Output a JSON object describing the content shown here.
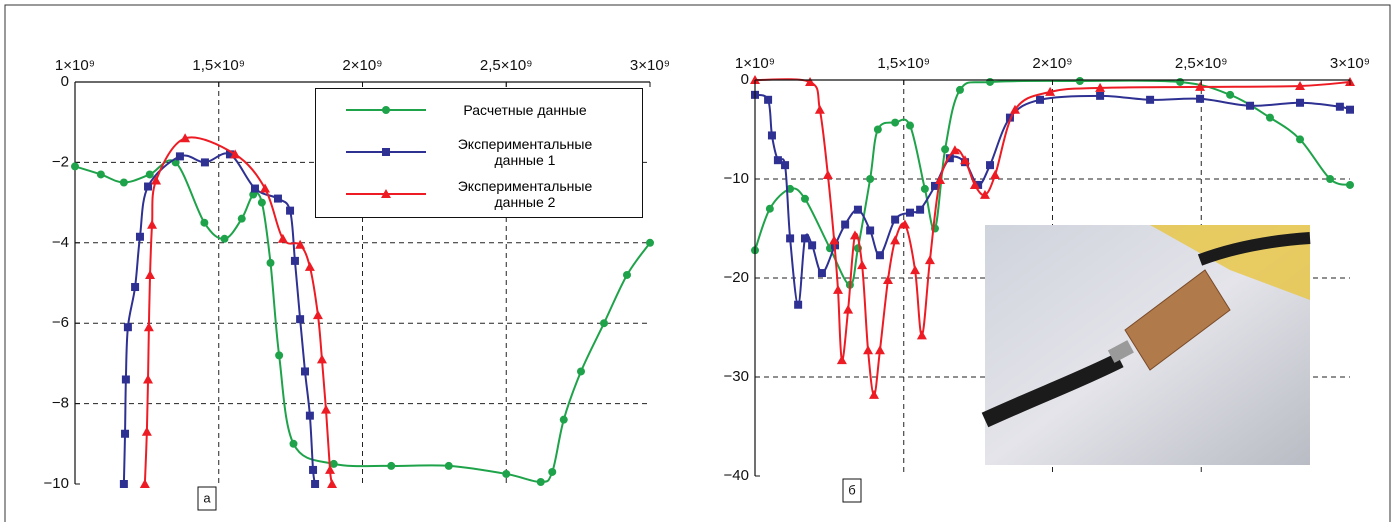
{
  "chart_data": [
    {
      "type": "line",
      "panel_label": "а",
      "xlim": [
        1000000000.0,
        3000000000.0
      ],
      "xticks": [
        {
          "value": 1000000000.0,
          "label": "1×10⁹"
        },
        {
          "value": 1500000000.0,
          "label": "1,5×10⁹"
        },
        {
          "value": 2000000000.0,
          "label": "2×10⁹"
        },
        {
          "value": 2500000000.0,
          "label": "2,5×10⁹"
        },
        {
          "value": 3000000000.0,
          "label": "3×10⁹"
        }
      ],
      "ylim": [
        -10,
        0
      ],
      "yticks": [
        0,
        {
          "value": -2,
          "label": "−2"
        },
        {
          "value": -4,
          "label": "−4"
        },
        {
          "value": -6,
          "label": "−6"
        },
        {
          "value": -8,
          "label": "−8"
        },
        {
          "value": -10,
          "label": "−10"
        }
      ],
      "grid": true,
      "legend": "upper right",
      "series": [
        {
          "name": "Расчетные данные",
          "color": "#1fa34a",
          "marker": "circle",
          "x": [
            1000000000.0,
            1090000000.0,
            1170000000.0,
            1260000000.0,
            1350000000.0,
            1450000000.0,
            1520000000.0,
            1580000000.0,
            1620000000.0,
            1650000000.0,
            1680000000.0,
            1710000000.0,
            1760000000.0,
            1900000000.0,
            2100000000.0,
            2300000000.0,
            2500000000.0,
            2620000000.0,
            2660000000.0,
            2700000000.0,
            2760000000.0,
            2840000000.0,
            2920000000.0,
            3000000000.0
          ],
          "values": [
            -2.1,
            -2.3,
            -2.5,
            -2.3,
            -2.0,
            -3.5,
            -3.9,
            -3.4,
            -2.8,
            -3.0,
            -4.5,
            -6.8,
            -9.0,
            -9.5,
            -9.55,
            -9.55,
            -9.75,
            -9.95,
            -9.7,
            -8.4,
            -7.2,
            -6.0,
            -4.8,
            -4.0
          ]
        },
        {
          "name": "Экспериментальные данные 1",
          "color": "#2e3192",
          "marker": "square",
          "x": [
            1170000000.0,
            1174000000.0,
            1177000000.0,
            1184000000.0,
            1209000000.0,
            1226000000.0,
            1254000000.0,
            1365000000.0,
            1452000000.0,
            1539000000.0,
            1626000000.0,
            1706000000.0,
            1748000000.0,
            1765000000.0,
            1783000000.0,
            1800000000.0,
            1817000000.0,
            1828000000.0,
            1835000000.0
          ],
          "values": [
            -10,
            -8.75,
            -7.4,
            -6.1,
            -5.1,
            -3.85,
            -2.6,
            -1.85,
            -2.0,
            -1.8,
            -2.65,
            -2.9,
            -3.2,
            -4.45,
            -5.9,
            -7.2,
            -8.3,
            -9.65,
            -10
          ]
        },
        {
          "name": "Экспериментальные данные 2",
          "color": "#ed1c24",
          "marker": "triangle",
          "x": [
            1243000000.0,
            1250000000.0,
            1254000000.0,
            1257000000.0,
            1261000000.0,
            1268000000.0,
            1282000000.0,
            1383000000.0,
            1557000000.0,
            1661000000.0,
            1723000000.0,
            1783000000.0,
            1817000000.0,
            1845000000.0,
            1859000000.0,
            1873000000.0,
            1887000000.0,
            1894000000.0
          ],
          "values": [
            -10,
            -8.7,
            -7.4,
            -6.1,
            -4.8,
            -3.55,
            -2.45,
            -1.4,
            -1.8,
            -2.65,
            -3.9,
            -4.05,
            -4.6,
            -5.8,
            -6.9,
            -8.15,
            -9.65,
            -10
          ]
        }
      ]
    },
    {
      "type": "line",
      "panel_label": "б",
      "xlim": [
        1000000000.0,
        3000000000.0
      ],
      "xticks": [
        {
          "value": 1000000000.0,
          "label": "1×10⁹"
        },
        {
          "value": 1500000000.0,
          "label": "1,5×10⁹"
        },
        {
          "value": 2000000000.0,
          "label": "2×10⁹"
        },
        {
          "value": 2500000000.0,
          "label": "2,5×10⁹"
        },
        {
          "value": 3000000000.0,
          "label": "3×10⁹"
        }
      ],
      "ylim": [
        -40,
        0
      ],
      "yticks": [
        0,
        {
          "value": -10,
          "label": "−10"
        },
        {
          "value": -20,
          "label": "−20"
        },
        {
          "value": -30,
          "label": "−30"
        },
        {
          "value": -40,
          "label": "−40"
        }
      ],
      "grid": true,
      "series": [
        {
          "color": "#1fa34a",
          "marker": "circle",
          "x": [
            1000000000.0,
            1050000000.0,
            1118000000.0,
            1168000000.0,
            1252000000.0,
            1319000000.0,
            1346000000.0,
            1387000000.0,
            1413000000.0,
            1471000000.0,
            1521000000.0,
            1571000000.0,
            1605000000.0,
            1639000000.0,
            1689000000.0,
            1790000000.0,
            2092000000.0,
            2429000000.0,
            2597000000.0,
            2731000000.0,
            2832000000.0,
            2933000000.0,
            3000000000.0
          ],
          "values": [
            -17.2,
            -13,
            -11,
            -12,
            -17,
            -20.7,
            -17,
            -10,
            -5,
            -4.3,
            -4.6,
            -11,
            -15,
            -7,
            -1,
            -0.2,
            -0.1,
            -0.2,
            -1.5,
            -3.8,
            -6,
            -10,
            -10.6
          ]
        },
        {
          "color": "#2e3192",
          "marker": "square",
          "x": [
            1000000000.0,
            1044000000.0,
            1057000000.0,
            1077000000.0,
            1101000000.0,
            1118000000.0,
            1145000000.0,
            1168000000.0,
            1192000000.0,
            1225000000.0,
            1269000000.0,
            1303000000.0,
            1346000000.0,
            1387000000.0,
            1420000000.0,
            1471000000.0,
            1521000000.0,
            1555000000.0,
            1605000000.0,
            1655000000.0,
            1706000000.0,
            1750000000.0,
            1790000000.0,
            1857000000.0,
            1958000000.0,
            2160000000.0,
            2328000000.0,
            2496000000.0,
            2664000000.0,
            2832000000.0,
            2966000000.0,
            3000000000.0
          ],
          "values": [
            -1.5,
            -2,
            -5.6,
            -8.1,
            -8.6,
            -16,
            -22.7,
            -16,
            -16.7,
            -19.5,
            -16.7,
            -14.6,
            -13.1,
            -15.2,
            -17.7,
            -14.1,
            -13.4,
            -13.1,
            -10.7,
            -7.9,
            -8.3,
            -10.6,
            -8.6,
            -3.8,
            -2,
            -1.6,
            -2,
            -1.9,
            -2.6,
            -2.3,
            -2.7,
            -3
          ]
        },
        {
          "color": "#ed1c24",
          "marker": "triangle",
          "x": [
            1000000000.0,
            1185000000.0,
            1218000000.0,
            1245000000.0,
            1266000000.0,
            1279000000.0,
            1292000000.0,
            1313000000.0,
            1336000000.0,
            1360000000.0,
            1380000000.0,
            1400000000.0,
            1420000000.0,
            1447000000.0,
            1471000000.0,
            1504000000.0,
            1538000000.0,
            1561000000.0,
            1588000000.0,
            1622000000.0,
            1672000000.0,
            1706000000.0,
            1739000000.0,
            1773000000.0,
            1807000000.0,
            1874000000.0,
            1992000000.0,
            2160000000.0,
            2496000000.0,
            2832000000.0,
            3000000000.0
          ],
          "values": [
            0,
            -0.2,
            -3,
            -9.6,
            -16.2,
            -21.2,
            -28.3,
            -23.2,
            -15.7,
            -18.7,
            -27.3,
            -31.8,
            -27.3,
            -20.2,
            -16.2,
            -14.6,
            -19.2,
            -25.8,
            -18.2,
            -10.1,
            -7.1,
            -8.1,
            -10.6,
            -11.6,
            -9.6,
            -3,
            -1.2,
            -0.8,
            -0.7,
            -0.6,
            -0.2
          ]
        }
      ]
    }
  ]
}
